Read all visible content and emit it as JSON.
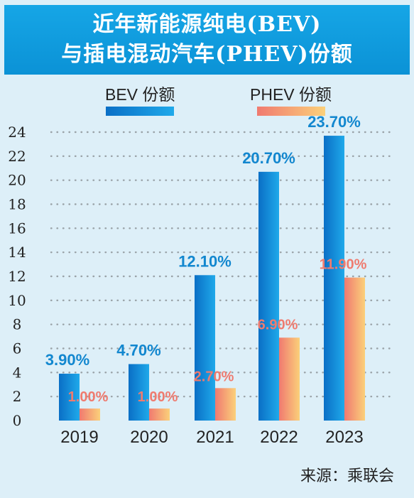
{
  "title": {
    "line1": "近年新能源纯电(BEV)",
    "line2": "与插电混动汽车(PHEV)份额"
  },
  "source": "来源：乘联会",
  "colors": {
    "title_bg": "#0b92d6",
    "background": "#ddeff8",
    "bev_start": "#0a6fc6",
    "bev_end": "#1fa9ea",
    "phev_start": "#f07a70",
    "phev_end": "#fbd07a",
    "bev_label": "#1287cf",
    "phev_label": "#ef7b6f"
  },
  "chart_data": {
    "type": "bar",
    "categories": [
      "2019",
      "2020",
      "2021",
      "2022",
      "2023"
    ],
    "series": [
      {
        "name": "BEV 份额",
        "values": [
          3.9,
          4.7,
          12.1,
          20.7,
          23.7
        ],
        "labels": [
          "3.90%",
          "4.70%",
          "12.10%",
          "20.70%",
          "23.70%"
        ]
      },
      {
        "name": "PHEV 份额",
        "values": [
          1.0,
          1.0,
          2.7,
          6.9,
          11.9
        ],
        "labels": [
          "1.00%",
          "1.00%",
          "2.70%",
          "6.90%",
          "11.90%"
        ]
      }
    ],
    "ylim": [
      0,
      24
    ],
    "yticks": [
      "0",
      "2",
      "4",
      "6",
      "8",
      "10",
      "12",
      "14",
      "16",
      "18",
      "20",
      "22",
      "24"
    ],
    "grid": true,
    "legend": "top"
  }
}
